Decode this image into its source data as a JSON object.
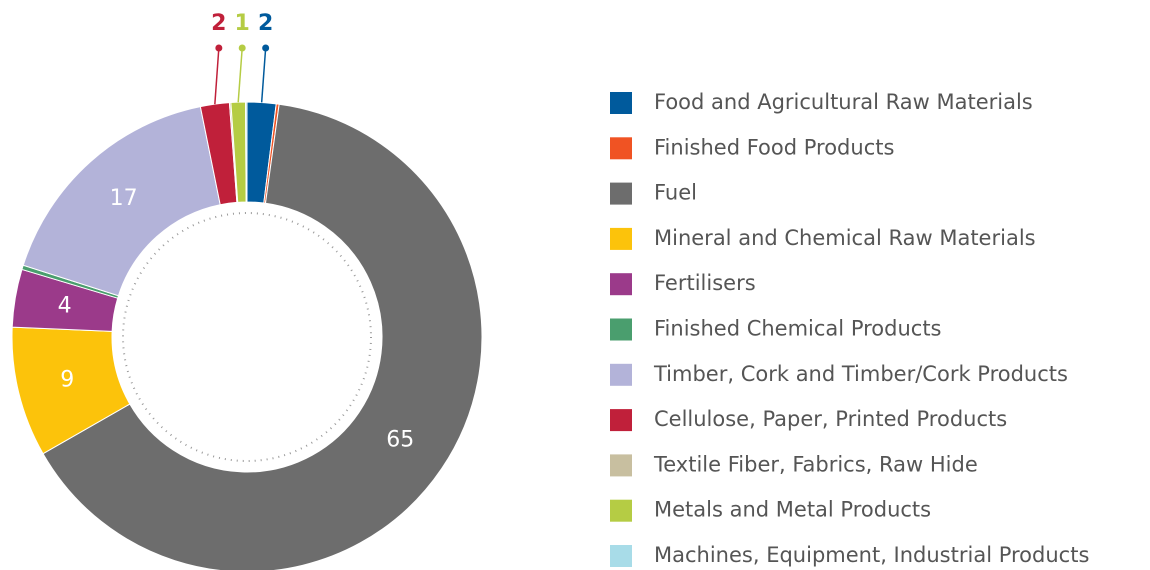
{
  "chart_data": {
    "type": "donut",
    "categories": [
      "Food and Agricultural Raw Materials",
      "Finished Food Products",
      "Fuel",
      "Mineral and Chemical Raw Materials",
      "Fertilisers",
      "Finished Chemical Products",
      "Timber, Cork and Timber/Cork Products",
      "Cellulose, Paper, Printed Products",
      "Textile Fiber, Fabrics, Raw Hide",
      "Metals and Metal Products",
      "Machines, Equipment, Industrial Products"
    ],
    "values": [
      2,
      0.2,
      65,
      9,
      4,
      0.3,
      17,
      2,
      0.1,
      1,
      0.1
    ],
    "value_labels": [
      "2",
      null,
      "65",
      "9",
      "4",
      null,
      "17",
      "2",
      null,
      "1",
      null
    ],
    "colors": [
      "#005a9c",
      "#f05323",
      "#6d6d6d",
      "#fcc30b",
      "#9b3a8a",
      "#4a9e6e",
      "#b3b3d9",
      "#c0203a",
      "#c8bfa0",
      "#b5cc44",
      "#a8dce8"
    ],
    "legend": "right"
  }
}
